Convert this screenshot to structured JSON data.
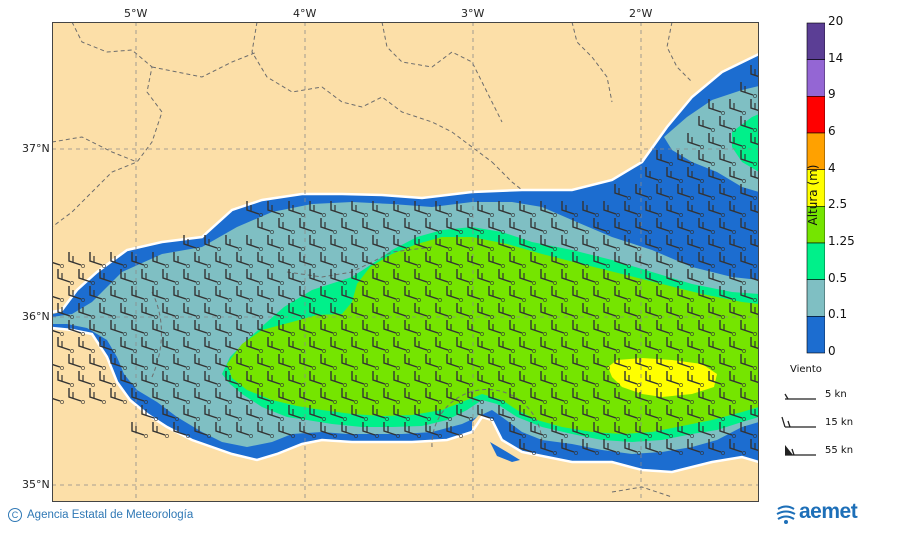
{
  "map": {
    "lon_labels": [
      "5°W",
      "4°W",
      "3°W",
      "2°W"
    ],
    "lat_labels": [
      "37°N",
      "36°N",
      "35°N"
    ],
    "colors": {
      "land": "#fcdfa8",
      "border": "#6d6d6d"
    }
  },
  "colorbar": {
    "title": "Altura (m)",
    "levels": [
      "20",
      "14",
      "9",
      "6",
      "4",
      "2.5",
      "1.25",
      "0.5",
      "0.1",
      "0"
    ],
    "colors": [
      "#5b3e95",
      "#9466d4",
      "#ff0000",
      "#ffa100",
      "#ffff00",
      "#75e500",
      "#00f08a",
      "#7fbfc3",
      "#1c6dd0"
    ]
  },
  "wind_legend": {
    "title": "Viento",
    "entries": [
      "5 kn",
      "15 kn",
      "55 kn"
    ]
  },
  "footer": {
    "copyright_symbol": "C",
    "agency": "Agencia Estatal de Meteorología",
    "logo_text": "aemet"
  }
}
